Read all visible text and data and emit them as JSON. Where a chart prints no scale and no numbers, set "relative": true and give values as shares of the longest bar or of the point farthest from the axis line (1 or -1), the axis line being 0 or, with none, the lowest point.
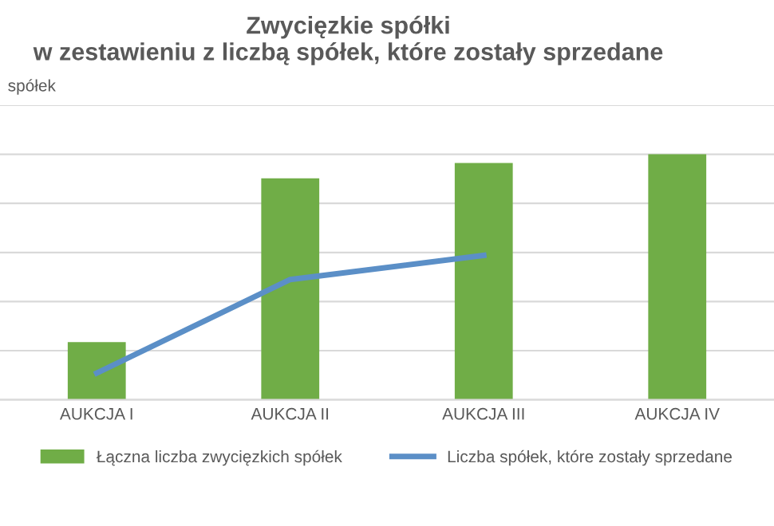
{
  "chart_data": {
    "type": "bar",
    "title": "Zwycięzkie spółki\nw zestawieniu z liczbą spółek, które zostały sprzedane",
    "ylabel": "spółek",
    "categories": [
      "AUKCJA I",
      "AUKCJA II",
      "AUKCJA III",
      "AUKCJA IV"
    ],
    "relative": true,
    "grid": "y",
    "legend": "bottom",
    "series": [
      {
        "name": "Łączna liczba zwycięzkich spółek",
        "color": "#70ad47",
        "values": [
          0.235,
          0.902,
          0.965,
          1
        ]
      },
      {
        "name": "Liczba spółek, które zostały sprzedane",
        "type": "line",
        "color": "#5b8fc7",
        "values": [
          0.109,
          0.49,
          0.588,
          null
        ]
      }
    ]
  }
}
